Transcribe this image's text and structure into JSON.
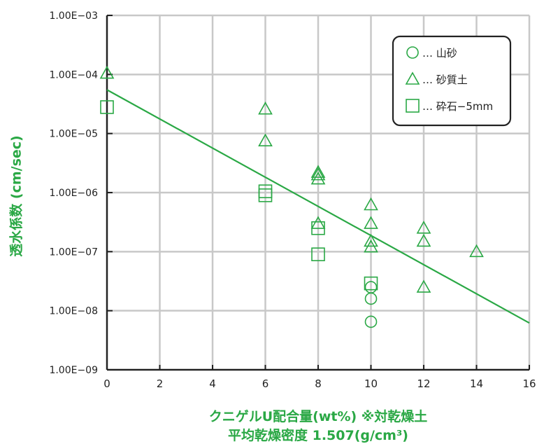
{
  "chart_data": {
    "type": "scatter",
    "xlabel": "クニゲルU配合量(wt%) ※対乾燥土",
    "xlabel2": "平均乾燥密度 1.507(g/cm³)",
    "ylabel": "透水係数 (cm/sec)",
    "y_scale": "log",
    "xlim": [
      0,
      16
    ],
    "ylim": [
      1e-09,
      0.001
    ],
    "x_ticks": [
      "0",
      "2",
      "4",
      "6",
      "8",
      "10",
      "12",
      "14",
      "16"
    ],
    "y_ticks": [
      "1.00E−09",
      "1.00E−08",
      "1.00E−07",
      "1.00E−06",
      "1.00E−05",
      "1.00E−04",
      "1.00E−03"
    ],
    "grid": true,
    "legend_position": "top-right",
    "series": [
      {
        "name": "山砂",
        "marker": "circle",
        "points": [
          [
            10,
            2.5e-08
          ],
          [
            10,
            1.6e-08
          ],
          [
            10,
            6.5e-09
          ]
        ]
      },
      {
        "name": "砂質土",
        "marker": "triangle",
        "points": [
          [
            0,
            0.000105
          ],
          [
            6,
            2.6e-05
          ],
          [
            6,
            7.5e-06
          ],
          [
            8,
            2.2e-06
          ],
          [
            8,
            2e-06
          ],
          [
            8,
            1.7e-06
          ],
          [
            8,
            3e-07
          ],
          [
            10,
            6.2e-07
          ],
          [
            10,
            3e-07
          ],
          [
            10,
            1.5e-07
          ],
          [
            10,
            1.2e-07
          ],
          [
            12,
            2.5e-07
          ],
          [
            12,
            1.5e-07
          ],
          [
            12,
            2.5e-08
          ],
          [
            14,
            1e-07
          ]
        ]
      },
      {
        "name": "砕石−5mm",
        "marker": "square",
        "points": [
          [
            0,
            2.8e-05
          ],
          [
            6,
            1.05e-06
          ],
          [
            6,
            9e-07
          ],
          [
            8,
            2.5e-07
          ],
          [
            8,
            9e-08
          ],
          [
            10,
            2.9e-08
          ]
        ]
      }
    ],
    "trendline": {
      "x": [
        0,
        16
      ],
      "y": [
        5.5e-05,
        6.2e-09
      ]
    },
    "colors": {
      "marker": "#2aa845",
      "line": "#2aa845",
      "axis": "#222222",
      "grid": "#c8c8c8",
      "label": "#2aa845"
    }
  }
}
